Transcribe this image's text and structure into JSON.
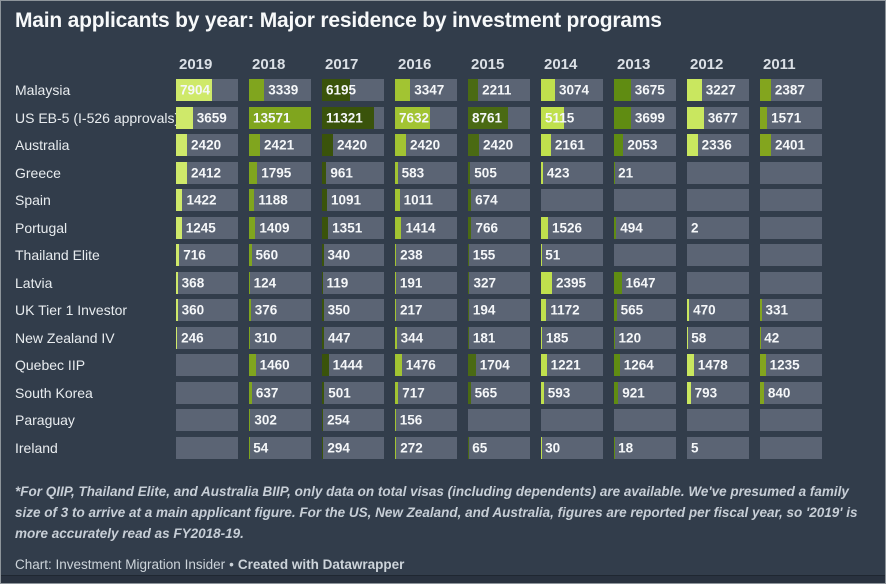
{
  "chart_data": {
    "type": "table",
    "title": "Main applicants by year: Major residence by investment programs",
    "columns": [
      "2019",
      "2018",
      "2017",
      "2016",
      "2015",
      "2014",
      "2013",
      "2012",
      "2011"
    ],
    "max_value": 13571,
    "column_colors": [
      "#cfe96a",
      "#80a51e",
      "#3a530b",
      "#a2c432",
      "#4a6a13",
      "#c0e04d",
      "#608c12",
      "#c9e75f",
      "#83a51e"
    ],
    "cell_background": "#5b6474",
    "rows": [
      {
        "label": "Malaysia",
        "values": [
          7904,
          3339,
          6195,
          3347,
          2211,
          3074,
          3675,
          3227,
          2387
        ]
      },
      {
        "label": "US EB-5 (I-526 approvals)",
        "values": [
          3659,
          13571,
          11321,
          7632,
          8761,
          5115,
          3699,
          3677,
          1571
        ]
      },
      {
        "label": "Australia",
        "values": [
          2420,
          2421,
          2420,
          2420,
          2420,
          2161,
          2053,
          2336,
          2401
        ]
      },
      {
        "label": "Greece",
        "values": [
          2412,
          1795,
          961,
          583,
          505,
          423,
          21,
          null,
          null
        ]
      },
      {
        "label": "Spain",
        "values": [
          1422,
          1188,
          1091,
          1011,
          674,
          null,
          null,
          null,
          null
        ]
      },
      {
        "label": "Portugal",
        "values": [
          1245,
          1409,
          1351,
          1414,
          766,
          1526,
          494,
          2,
          null
        ]
      },
      {
        "label": "Thailand Elite",
        "values": [
          716,
          560,
          340,
          238,
          155,
          51,
          null,
          null,
          null
        ]
      },
      {
        "label": "Latvia",
        "values": [
          368,
          124,
          119,
          191,
          327,
          2395,
          1647,
          null,
          null
        ]
      },
      {
        "label": "UK Tier 1 Investor",
        "values": [
          360,
          376,
          350,
          217,
          194,
          1172,
          565,
          470,
          331
        ]
      },
      {
        "label": "New Zealand IV",
        "values": [
          246,
          310,
          447,
          344,
          181,
          185,
          120,
          58,
          42
        ]
      },
      {
        "label": "Quebec IIP",
        "values": [
          null,
          1460,
          1444,
          1476,
          1704,
          1221,
          1264,
          1478,
          1235
        ]
      },
      {
        "label": "South Korea",
        "values": [
          null,
          637,
          501,
          717,
          565,
          593,
          921,
          793,
          840
        ]
      },
      {
        "label": "Paraguay",
        "values": [
          null,
          302,
          254,
          156,
          null,
          null,
          null,
          null,
          null
        ]
      },
      {
        "label": "Ireland",
        "values": [
          null,
          54,
          294,
          272,
          65,
          30,
          18,
          5,
          null
        ]
      }
    ]
  },
  "footnote": "*For QIIP, Thailand Elite, and Australia BIIP, only data on total visas (including dependents) are available. We've presumed a family size of 3 to arrive at a main applicant figure. For the US, New Zealand, and Australia, figures are reported per fiscal year, so '2019' is more accurately read as FY2018-19.",
  "footer": {
    "source": "Chart: Investment Migration Insider",
    "separator": "•",
    "credit": "Created with Datawrapper"
  }
}
